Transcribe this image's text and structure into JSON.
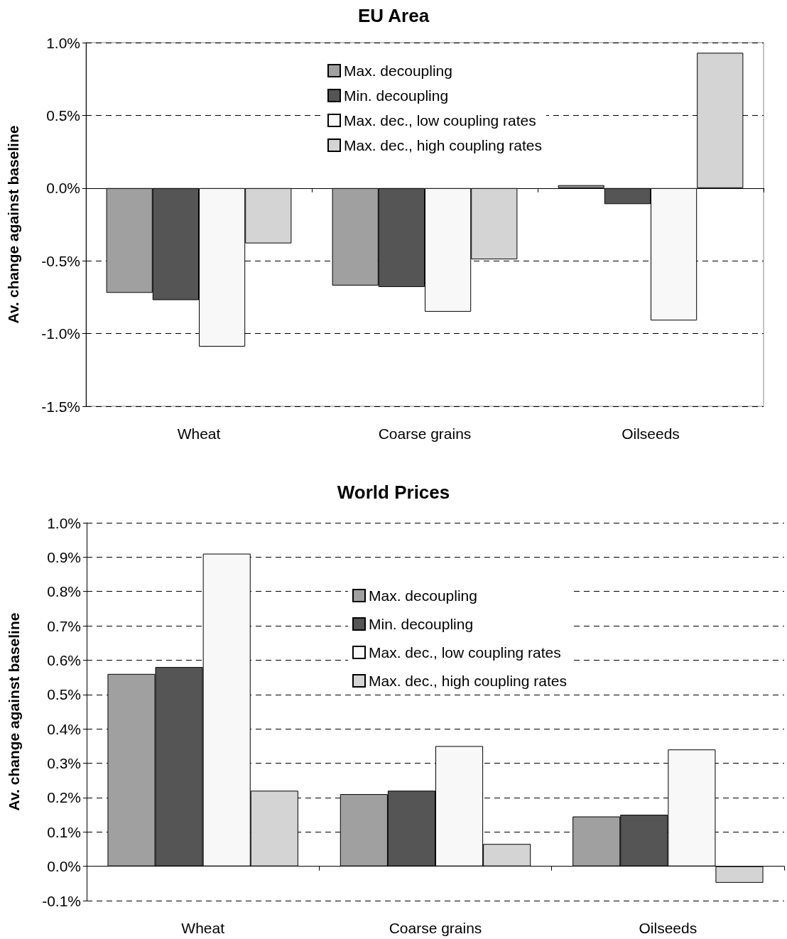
{
  "chart_data": [
    {
      "type": "bar",
      "title": "EU Area",
      "ylabel": "Av. change against baseline",
      "categories": [
        "Wheat",
        "Coarse grains",
        "Oilseeds"
      ],
      "series": [
        {
          "name": "Max. decoupling",
          "color": "#a0a0a0",
          "values": [
            -0.72,
            -0.67,
            0.02
          ]
        },
        {
          "name": "Min. decoupling",
          "color": "#555555",
          "values": [
            -0.77,
            -0.68,
            -0.11
          ]
        },
        {
          "name": "Max. dec., low coupling rates",
          "color": "#f8f8f8",
          "values": [
            -1.09,
            -0.85,
            -0.91
          ]
        },
        {
          "name": "Max. dec., high coupling rates",
          "color": "#d4d4d4",
          "values": [
            -0.38,
            -0.49,
            0.93
          ]
        }
      ],
      "ylim": [
        -1.5,
        1.0
      ],
      "yticks": [
        {
          "value": -1.5,
          "label": "-1.5%"
        },
        {
          "value": -1.0,
          "label": "-1.0%"
        },
        {
          "value": -0.5,
          "label": "-0.5%"
        },
        {
          "value": 0,
          "label": "0.0%"
        },
        {
          "value": 0.5,
          "label": "0.5%"
        },
        {
          "value": 1.0,
          "label": "1.0%"
        }
      ],
      "grid": "y",
      "legend": "top"
    },
    {
      "type": "bar",
      "title": "World Prices",
      "ylabel": "Av. change against baseline",
      "categories": [
        "Wheat",
        "Coarse grains",
        "Oilseeds"
      ],
      "series": [
        {
          "name": "Max. decoupling",
          "color": "#a0a0a0",
          "values": [
            0.56,
            0.21,
            0.145
          ]
        },
        {
          "name": "Min. decoupling",
          "color": "#555555",
          "values": [
            0.58,
            0.22,
            0.15
          ]
        },
        {
          "name": "Max. dec., low coupling rates",
          "color": "#f8f8f8",
          "values": [
            0.91,
            0.35,
            0.34
          ]
        },
        {
          "name": "Max. dec., high coupling rates",
          "color": "#d4d4d4",
          "values": [
            0.22,
            0.065,
            -0.048
          ]
        }
      ],
      "ylim": [
        -0.1,
        1.0
      ],
      "yticks": [
        {
          "value": -0.1,
          "label": "-0.1%"
        },
        {
          "value": 0,
          "label": "0.0%"
        },
        {
          "value": 0.1,
          "label": "0.1%"
        },
        {
          "value": 0.2,
          "label": "0.2%"
        },
        {
          "value": 0.3,
          "label": "0.3%"
        },
        {
          "value": 0.4,
          "label": "0.4%"
        },
        {
          "value": 0.5,
          "label": "0.5%"
        },
        {
          "value": 0.6,
          "label": "0.6%"
        },
        {
          "value": 0.7,
          "label": "0.7%"
        },
        {
          "value": 0.8,
          "label": "0.8%"
        },
        {
          "value": 0.9,
          "label": "0.9%"
        },
        {
          "value": 1.0,
          "label": "1.0%"
        }
      ],
      "grid": "y",
      "legend": "top"
    }
  ]
}
